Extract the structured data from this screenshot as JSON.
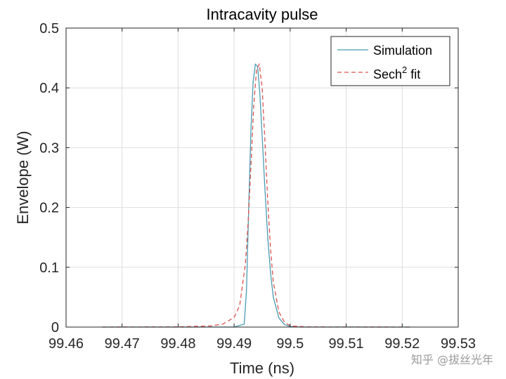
{
  "chart_data": {
    "type": "line",
    "title": "Intracavity pulse",
    "xlabel": "Time (ns)",
    "ylabel": "Envelope (W)",
    "xlim": [
      99.46,
      99.53
    ],
    "ylim": [
      0,
      0.5
    ],
    "xticks": [
      99.46,
      99.47,
      99.48,
      99.49,
      99.5,
      99.51,
      99.52,
      99.53
    ],
    "xtick_labels": [
      "99.46",
      "99.47",
      "99.48",
      "99.49",
      "99.5",
      "99.51",
      "99.52",
      "99.53"
    ],
    "yticks": [
      0,
      0.1,
      0.2,
      0.3,
      0.4,
      0.5
    ],
    "ytick_labels": [
      "0",
      "0.1",
      "0.2",
      "0.3",
      "0.4",
      "0.5"
    ],
    "grid": true,
    "legend_position": "top-right",
    "series": [
      {
        "name": "Simulation",
        "color": "#4a9cb2",
        "style": "solid",
        "x": [
          99.4665,
          99.49,
          99.4918,
          99.4922,
          99.4926,
          99.493,
          99.4934,
          99.4938,
          99.4942,
          99.4946,
          99.495,
          99.4955,
          99.496,
          99.4965,
          99.497,
          99.498,
          99.499,
          99.5,
          99.502,
          99.5215
        ],
        "y": [
          0,
          0,
          0.005,
          0.06,
          0.2,
          0.33,
          0.41,
          0.44,
          0.435,
          0.39,
          0.32,
          0.23,
          0.15,
          0.09,
          0.05,
          0.015,
          0.004,
          0.001,
          0,
          0
        ]
      },
      {
        "name": "Sech² fit",
        "color": "#d9534f",
        "style": "dashed",
        "x": [
          99.4665,
          99.48,
          99.486,
          99.488,
          99.49,
          99.491,
          99.492,
          99.4925,
          99.493,
          99.4935,
          99.494,
          99.4945,
          99.495,
          99.4955,
          99.496,
          99.4965,
          99.497,
          99.498,
          99.499,
          99.5,
          99.503,
          99.5215
        ],
        "y": [
          0,
          0.0003,
          0.002,
          0.005,
          0.016,
          0.036,
          0.105,
          0.175,
          0.27,
          0.37,
          0.43,
          0.44,
          0.4,
          0.31,
          0.21,
          0.13,
          0.075,
          0.025,
          0.008,
          0.002,
          0.0002,
          0
        ]
      }
    ],
    "legend": [
      {
        "name": "Simulation",
        "base": "Simulation",
        "sup": ""
      },
      {
        "name": "Sech² fit",
        "base": "Sech",
        "sup": "2",
        "rest": " fit"
      }
    ]
  },
  "watermark": "知乎 @拔丝光年"
}
